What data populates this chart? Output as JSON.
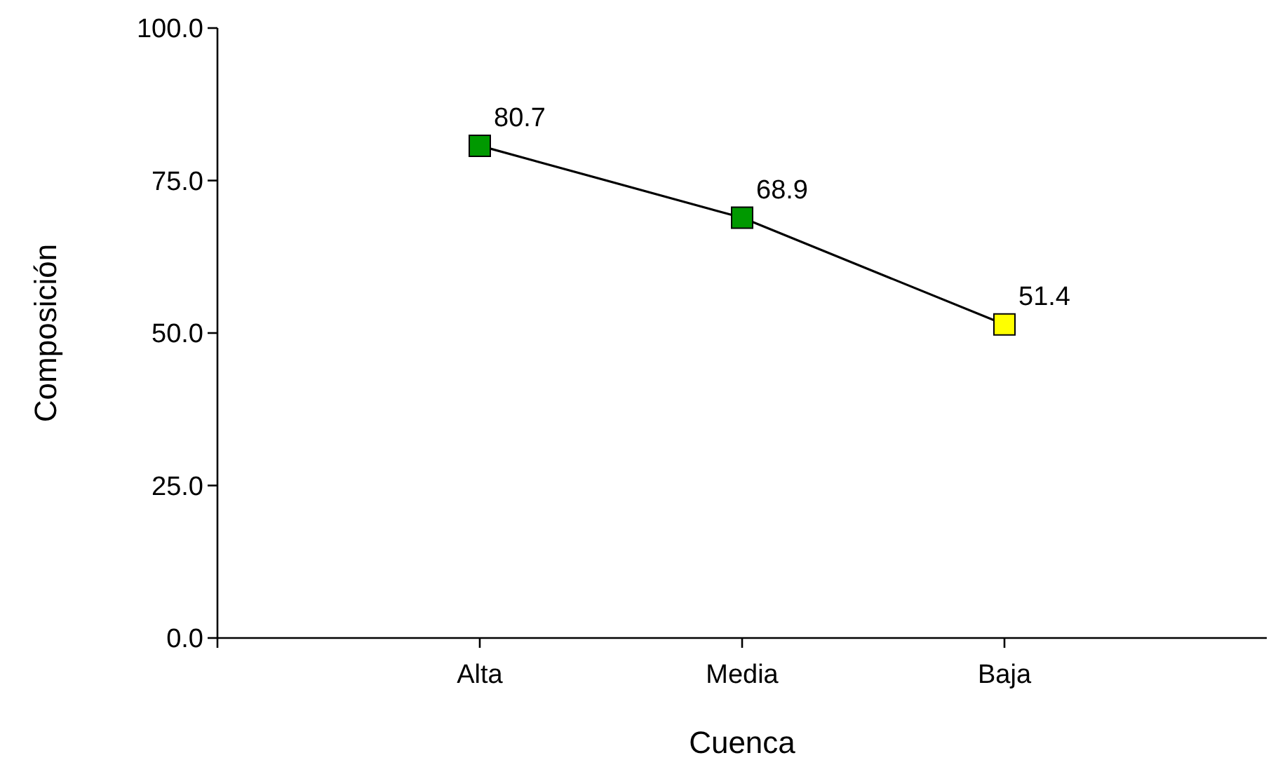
{
  "chart_data": {
    "type": "line",
    "xlabel": "Cuenca",
    "ylabel": "Composición",
    "categories": [
      "Alta",
      "Media",
      "Baja"
    ],
    "series": [
      {
        "color": "#000000",
        "colors": [
          "#009900",
          "#009900",
          "#ffff00"
        ],
        "values": [
          80.7,
          68.9,
          51.4
        ]
      }
    ],
    "ylim": [
      0,
      100
    ],
    "yticks": [
      {
        "value": 0,
        "label": "0.0"
      },
      {
        "value": 25,
        "label": "25.0"
      },
      {
        "value": 50,
        "label": "50.0"
      },
      {
        "value": 75,
        "label": "75.0"
      },
      {
        "value": 100,
        "label": "100.0"
      }
    ],
    "marker": "square",
    "line_style": "solid",
    "data_labels": true,
    "grid": false
  }
}
